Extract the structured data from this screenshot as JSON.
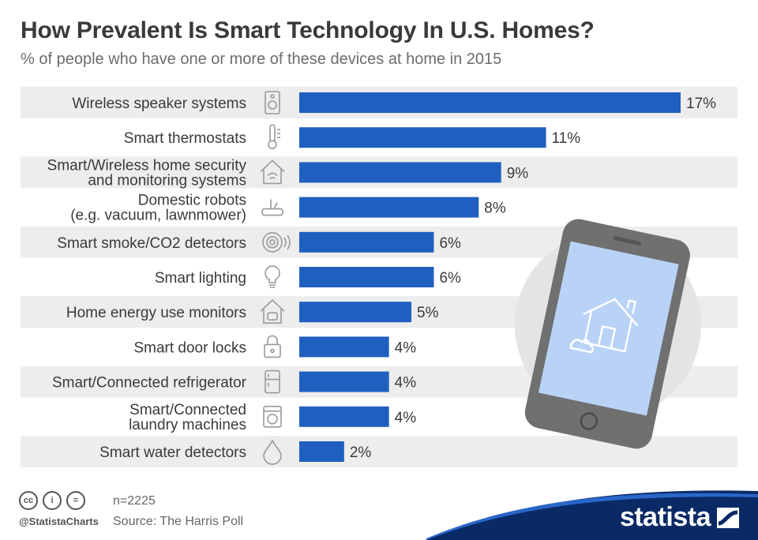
{
  "header": {
    "title": "How Prevalent Is Smart Technology In U.S. Homes?",
    "subtitle": "% of people who have one or more of these devices at home in 2015"
  },
  "chart_data": {
    "type": "bar",
    "orientation": "horizontal",
    "title": "How Prevalent Is Smart Technology In U.S. Homes?",
    "subtitle": "% of people who have one or more of these devices at home in 2015",
    "categories": [
      [
        "Wireless speaker systems"
      ],
      [
        "Smart thermostats"
      ],
      [
        "Smart/Wireless home security",
        "and monitoring systems"
      ],
      [
        "Domestic robots",
        "(e.g. vacuum, lawnmower)"
      ],
      [
        "Smart smoke/CO2 detectors"
      ],
      [
        "Smart lighting"
      ],
      [
        "Home energy use monitors"
      ],
      [
        "Smart door locks"
      ],
      [
        "Smart/Connected refrigerator"
      ],
      [
        "Smart/Connected",
        "laundry machines"
      ],
      [
        "Smart water detectors"
      ]
    ],
    "values": [
      17,
      11,
      9,
      8,
      6,
      6,
      5,
      4,
      4,
      4,
      2
    ],
    "value_labels": [
      "17%",
      "11%",
      "9%",
      "8%",
      "6%",
      "6%",
      "5%",
      "4%",
      "4%",
      "4%",
      "2%"
    ],
    "icons": [
      "speaker-icon",
      "thermometer-icon",
      "home-security-icon",
      "robot-vacuum-icon",
      "smoke-detector-icon",
      "light-bulb-icon",
      "energy-monitor-icon",
      "door-lock-icon",
      "refrigerator-icon",
      "washing-machine-icon",
      "water-drop-icon"
    ],
    "xlim": [
      0,
      17
    ],
    "colors": {
      "bar": "#1f5fbf",
      "band": "#ededed",
      "icon": "#9a9a9a"
    }
  },
  "illustration": {
    "icon": "smartphone-smart-home-icon",
    "screen": "#b9d3f7",
    "frame": "#707070",
    "circle": "#e4e4e4"
  },
  "footer": {
    "license_icons": [
      "cc",
      "i",
      "="
    ],
    "handle": "@StatistaCharts",
    "sample": "n=2225",
    "source": "Source: The Harris Poll",
    "brand": "statista",
    "brand_color": "#0a2a66"
  }
}
